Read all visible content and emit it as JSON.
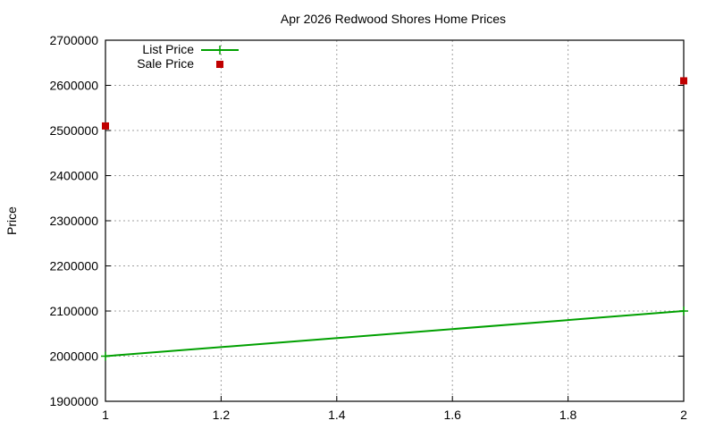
{
  "chart_data": {
    "type": "line",
    "title": "Apr 2026 Redwood Shores Home Prices",
    "xlabel": "",
    "ylabel": "Price",
    "xlim": [
      1,
      2
    ],
    "ylim": [
      1900000,
      2700000
    ],
    "xticks": [
      "1",
      "1.2",
      "1.4",
      "1.6",
      "1.8",
      "2"
    ],
    "yticks": [
      "1900000",
      "2000000",
      "2100000",
      "2200000",
      "2300000",
      "2400000",
      "2500000",
      "2600000",
      "2700000"
    ],
    "grid": true,
    "legend_position": "top-left",
    "series": [
      {
        "name": "List Price",
        "style": "linespoints",
        "color": "#00a000",
        "x": [
          1,
          2
        ],
        "values": [
          2000000,
          2100000
        ]
      },
      {
        "name": "Sale Price",
        "style": "points",
        "color": "#c00000",
        "x": [
          1,
          2
        ],
        "values": [
          2510000,
          2610000
        ]
      }
    ]
  }
}
